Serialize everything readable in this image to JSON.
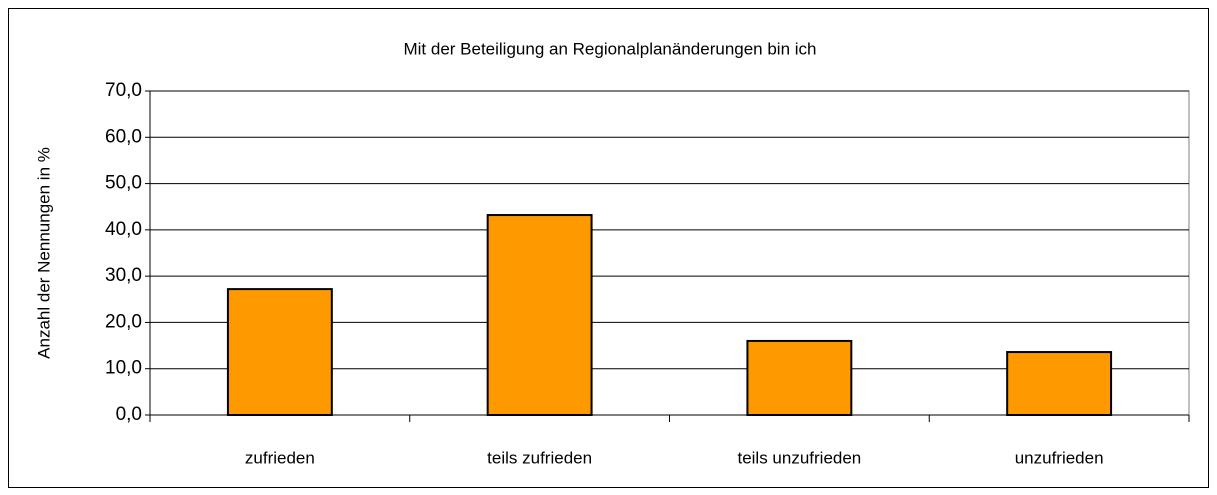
{
  "chart_data": {
    "type": "bar",
    "title": "Mit der Beteiligung an Regionalplanänderungen bin ich",
    "ylabel": "Anzahl der Nennungen in %",
    "categories": [
      "zufrieden",
      "teils zufrieden",
      "teils unzufrieden",
      "unzufrieden"
    ],
    "values": [
      27.2,
      43.2,
      16.0,
      13.6
    ],
    "color": "#ff9900",
    "ylim": [
      0,
      70
    ],
    "yticks": [
      {
        "value": 0,
        "label": "0,0"
      },
      {
        "value": 10,
        "label": "10,0"
      },
      {
        "value": 20,
        "label": "20,0"
      },
      {
        "value": 30,
        "label": "30,0"
      },
      {
        "value": 40,
        "label": "40,0"
      },
      {
        "value": 50,
        "label": "50,0"
      },
      {
        "value": 60,
        "label": "60,0"
      },
      {
        "value": 70,
        "label": "70,0"
      }
    ],
    "grid": true
  }
}
